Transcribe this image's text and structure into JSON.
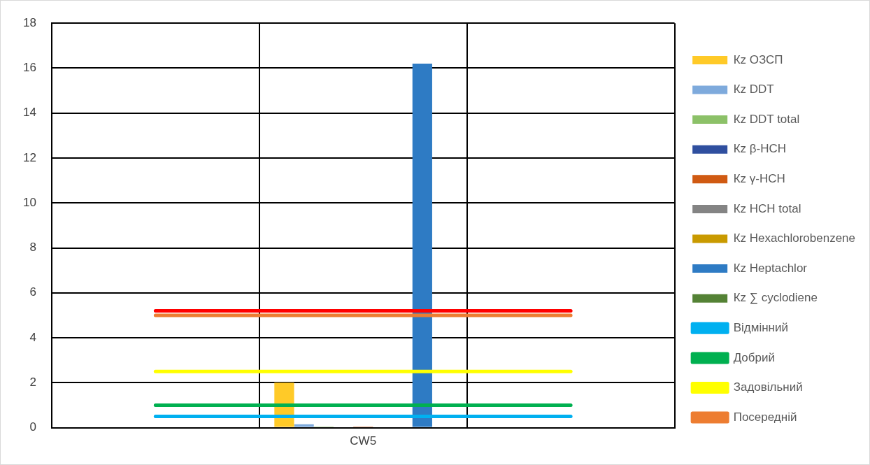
{
  "chart_data": {
    "type": "bar",
    "categories": [
      null,
      "CW5",
      null
    ],
    "ylim": [
      0,
      18
    ],
    "yticks": [
      0,
      2,
      4,
      6,
      8,
      10,
      12,
      14,
      16,
      18
    ],
    "grid": true,
    "legend": "right",
    "marker": "none",
    "series": [
      {
        "name": "Кz ОЗСП",
        "color": "#ffca28",
        "values": [
          null,
          2.0,
          null
        ]
      },
      {
        "name": "Кz DDT",
        "color": "#7eaadc",
        "values": [
          null,
          0.15,
          null
        ]
      },
      {
        "name": "Кz DDT total",
        "color": "#8cc168",
        "values": [
          null,
          0.05,
          null
        ]
      },
      {
        "name": "Кz β-HCH",
        "color": "#2f4f9f",
        "values": [
          null,
          0,
          null
        ]
      },
      {
        "name": "Кz γ-HCH",
        "color": "#d05a12",
        "values": [
          null,
          0.05,
          null
        ]
      },
      {
        "name": "Кz HCH total",
        "color": "#848484",
        "values": [
          null,
          0,
          null
        ]
      },
      {
        "name": "Кz Hexachlorobenzene",
        "color": "#c99a00",
        "values": [
          null,
          0,
          null
        ]
      },
      {
        "name": "Кz Heptachlor",
        "color": "#2e7bc4",
        "values": [
          null,
          16.2,
          null
        ]
      },
      {
        "name": "Кz ∑ cyclodiene",
        "color": "#548235",
        "values": [
          null,
          0,
          null
        ]
      },
      {
        "name": "Відмінний",
        "type": "line",
        "color": "#00b0f0",
        "values": [
          0.5,
          0.5,
          0.5
        ]
      },
      {
        "name": "Добрий",
        "type": "line",
        "color": "#00b050",
        "values": [
          1,
          1,
          1
        ]
      },
      {
        "name": "Задовільний",
        "type": "line",
        "color": "#ffff00",
        "values": [
          2.5,
          2.5,
          2.5
        ]
      },
      {
        "name": "Посередній",
        "type": "line",
        "color": "#ed7d31",
        "values": [
          5,
          5,
          5
        ]
      },
      {
        "type": "line",
        "color": "#ff0000",
        "values": [
          5.2,
          5.2,
          5.2
        ]
      }
    ]
  }
}
